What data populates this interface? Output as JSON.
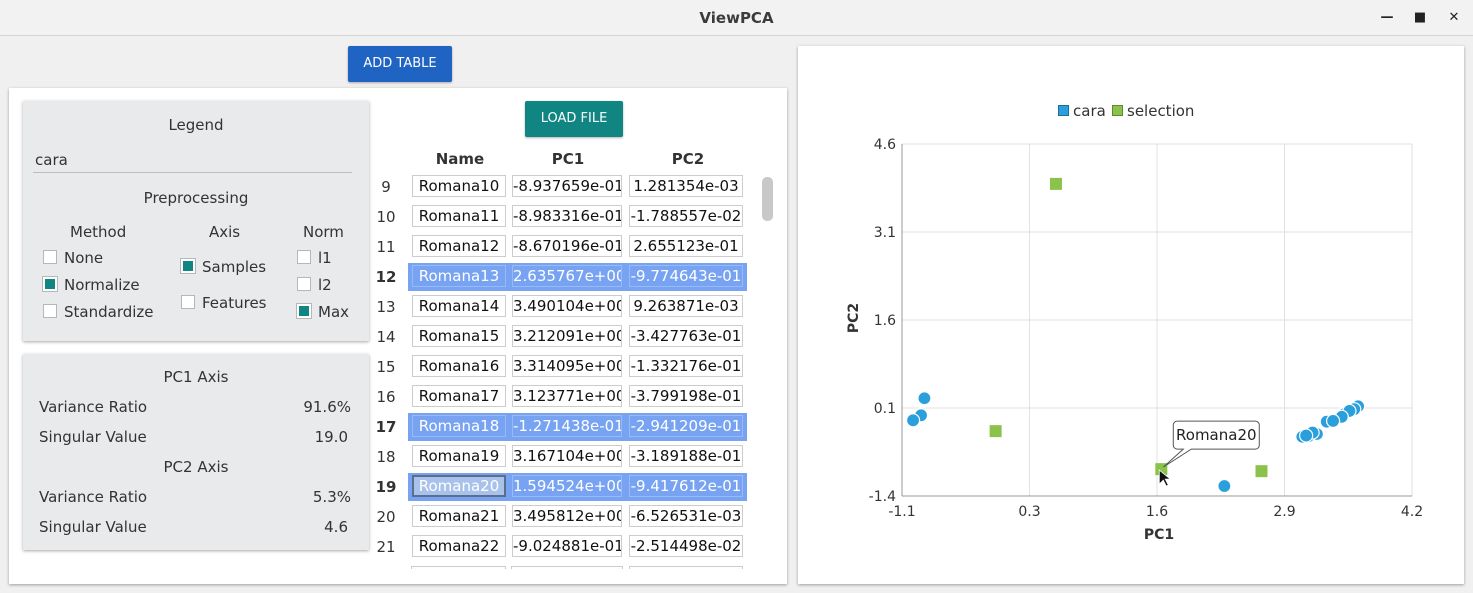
{
  "window": {
    "title": "ViewPCA"
  },
  "toolbar": {
    "add_table_label": "ADD TABLE",
    "load_file_label": "LOAD FILE"
  },
  "legend_card": {
    "header": "Legend",
    "name_value": "cara",
    "preprocessing_header": "Preprocessing",
    "method_header": "Method",
    "axis_header": "Axis",
    "norm_header": "Norm",
    "method_options": [
      {
        "label": "None",
        "checked": false
      },
      {
        "label": "Normalize",
        "checked": true
      },
      {
        "label": "Standardize",
        "checked": false
      }
    ],
    "axis_options": [
      {
        "label": "Samples",
        "checked": true
      },
      {
        "label": "Features",
        "checked": false
      }
    ],
    "norm_options": [
      {
        "label": "l1",
        "checked": false
      },
      {
        "label": "l2",
        "checked": false
      },
      {
        "label": "Max",
        "checked": true
      }
    ]
  },
  "stats_card": {
    "pc1_header": "PC1 Axis",
    "pc1_variance_label": "Variance Ratio",
    "pc1_variance_value": "91.6%",
    "pc1_singular_label": "Singular Value",
    "pc1_singular_value": "19.0",
    "pc2_header": "PC2 Axis",
    "pc2_variance_label": "Variance Ratio",
    "pc2_variance_value": "5.3%",
    "pc2_singular_label": "Singular Value",
    "pc2_singular_value": "4.6"
  },
  "table": {
    "headers": [
      "Name",
      "PC1",
      "PC2"
    ],
    "rows": [
      {
        "num": "9",
        "name": "Romana10",
        "pc1": "-8.937659e-01",
        "pc2": "1.281354e-03",
        "selected": false
      },
      {
        "num": "10",
        "name": "Romana11",
        "pc1": "-8.983316e-01",
        "pc2": "-1.788557e-02",
        "selected": false
      },
      {
        "num": "11",
        "name": "Romana12",
        "pc1": "-8.670196e-01",
        "pc2": "2.655123e-01",
        "selected": false
      },
      {
        "num": "12",
        "name": "Romana13",
        "pc1": "2.635767e+00",
        "pc2": "-9.774643e-01",
        "selected": true
      },
      {
        "num": "13",
        "name": "Romana14",
        "pc1": "3.490104e+00",
        "pc2": "9.263871e-03",
        "selected": false
      },
      {
        "num": "14",
        "name": "Romana15",
        "pc1": "3.212091e+00",
        "pc2": "-3.427763e-01",
        "selected": false
      },
      {
        "num": "15",
        "name": "Romana16",
        "pc1": "3.314095e+00",
        "pc2": "-1.332176e-01",
        "selected": false
      },
      {
        "num": "16",
        "name": "Romana17",
        "pc1": "3.123771e+00",
        "pc2": "-3.799198e-01",
        "selected": false
      },
      {
        "num": "17",
        "name": "Romana18",
        "pc1": "-1.271438e-01",
        "pc2": "-2.941209e-01",
        "selected": true
      },
      {
        "num": "18",
        "name": "Romana19",
        "pc1": "3.167104e+00",
        "pc2": "-3.189188e-01",
        "selected": false
      },
      {
        "num": "19",
        "name": "Romana20",
        "pc1": "1.594524e+00",
        "pc2": "-9.417612e-01",
        "selected": true,
        "focused": true
      },
      {
        "num": "20",
        "name": "Romana21",
        "pc1": "3.495812e+00",
        "pc2": "-6.526531e-03",
        "selected": false
      },
      {
        "num": "21",
        "name": "Romana22",
        "pc1": "-9.024881e-01",
        "pc2": "-2.514498e-02",
        "selected": false
      }
    ]
  },
  "chart_data": {
    "type": "scatter",
    "xlabel": "PC1",
    "ylabel": "PC2",
    "xlim": [
      -1.1,
      4.2
    ],
    "ylim": [
      -1.4,
      4.6
    ],
    "xticks": [
      "-1.1",
      "0.3",
      "1.6",
      "2.9",
      "4.2"
    ],
    "yticks": [
      "-1.4",
      "0.1",
      "1.6",
      "3.1",
      "4.6"
    ],
    "grid": true,
    "legend_position": "top",
    "tooltip": {
      "text": "Romana20",
      "x": 1.594524,
      "y": -0.9417612
    },
    "series": [
      {
        "name": "cara",
        "color": "#2a9fdc",
        "marker": "circle",
        "points": [
          [
            -0.867,
            0.266
          ],
          [
            -0.894,
            0.001
          ],
          [
            -0.898,
            -0.018
          ],
          [
            -0.902,
            -0.025
          ],
          [
            -0.985,
            -0.11
          ],
          [
            3.49,
            0.009
          ],
          [
            3.212,
            -0.343
          ],
          [
            3.314,
            -0.133
          ],
          [
            3.124,
            -0.38
          ],
          [
            3.167,
            -0.319
          ],
          [
            3.496,
            -0.007
          ],
          [
            3.64,
            0.13
          ],
          [
            3.6,
            0.08
          ],
          [
            3.55,
            0.05
          ],
          [
            3.47,
            -0.05
          ],
          [
            3.38,
            -0.12
          ],
          [
            3.06,
            -0.39
          ],
          [
            3.1,
            -0.37
          ],
          [
            2.25,
            -1.23
          ]
        ]
      },
      {
        "name": "selection",
        "color": "#8bc34a",
        "marker": "square",
        "points": [
          [
            0.5,
            3.92
          ],
          [
            -0.127,
            -0.294
          ],
          [
            1.595,
            -0.942
          ],
          [
            2.636,
            -0.977
          ]
        ]
      }
    ]
  }
}
